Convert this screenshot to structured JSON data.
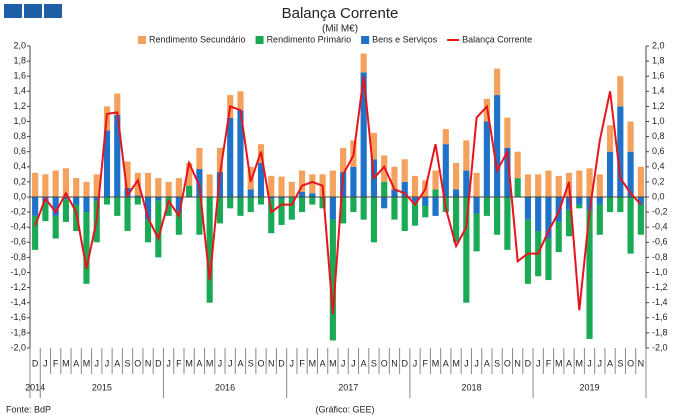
{
  "chart_data": {
    "type": "bar",
    "stacked": true,
    "title": "Balança Corrente",
    "subtitle": "(Mil M€)",
    "source": "Fonte: BdP",
    "credit": "(Gráfico: GEE)",
    "categories": [
      "D",
      "J",
      "F",
      "M",
      "A",
      "M",
      "J",
      "J",
      "A",
      "S",
      "O",
      "N",
      "D",
      "J",
      "F",
      "M",
      "A",
      "M",
      "J",
      "J",
      "A",
      "S",
      "O",
      "N",
      "D",
      "J",
      "F",
      "M",
      "A",
      "M",
      "J",
      "J",
      "A",
      "S",
      "O",
      "N",
      "D",
      "J",
      "F",
      "M",
      "A",
      "M",
      "J",
      "J",
      "A",
      "S",
      "O",
      "N",
      "D",
      "J",
      "F",
      "M",
      "A",
      "M",
      "J",
      "J",
      "A",
      "S",
      "O",
      "N"
    ],
    "years": [
      "2014",
      "2015",
      "2016",
      "2017",
      "2018",
      "2019"
    ],
    "ylim": [
      -2.0,
      2.0
    ],
    "yticks": [
      {
        "value": -2.0,
        "label": "-2,0"
      },
      {
        "value": -1.8,
        "label": "-1,8"
      },
      {
        "value": -1.6,
        "label": "-1,6"
      },
      {
        "value": -1.4,
        "label": "-1,4"
      },
      {
        "value": -1.2,
        "label": "-1,2"
      },
      {
        "value": -1.0,
        "label": "-1,0"
      },
      {
        "value": -0.8,
        "label": "-0,8"
      },
      {
        "value": -0.6,
        "label": "-0,6"
      },
      {
        "value": -0.4,
        "label": "-0,4"
      },
      {
        "value": -0.2,
        "label": "-0,2"
      },
      {
        "value": 0,
        "label": "0,0"
      },
      {
        "value": 0.2,
        "label": "0,2"
      },
      {
        "value": 0.4,
        "label": "0,4"
      },
      {
        "value": 0.6,
        "label": "0,6"
      },
      {
        "value": 0.8,
        "label": "0,8"
      },
      {
        "value": 1.0,
        "label": "1,0"
      },
      {
        "value": 1.2,
        "label": "1,2"
      },
      {
        "value": 1.4,
        "label": "1,4"
      },
      {
        "value": 1.6,
        "label": "1,6"
      },
      {
        "value": 1.8,
        "label": "1,8"
      },
      {
        "value": 2.0,
        "label": "2,0"
      }
    ],
    "grid": false,
    "series": [
      {
        "name": "Rendimento Secundário",
        "color": "#f4a15d",
        "kind": "bar",
        "values": [
          0.32,
          0.3,
          0.35,
          0.38,
          0.25,
          0.2,
          0.3,
          0.32,
          0.28,
          0.35,
          0.3,
          0.32,
          0.25,
          0.2,
          0.25,
          0.3,
          0.28,
          0.3,
          0.32,
          0.3,
          0.25,
          0.3,
          0.25,
          0.28,
          0.27,
          0.2,
          0.28,
          0.25,
          0.3,
          0.35,
          0.32,
          0.35,
          0.25,
          0.35,
          0.35,
          0.3,
          0.3,
          0.28,
          0.22,
          0.25,
          0.2,
          0.35,
          0.4,
          0.32,
          0.3,
          0.35,
          0.4,
          0.35,
          0.3,
          0.3,
          0.35,
          0.28,
          0.32,
          0.35,
          0.38,
          0.3,
          0.35,
          0.4,
          0.4,
          0.4
        ]
      },
      {
        "name": "Rendimento Primário",
        "color": "#1aaa55",
        "kind": "bar",
        "values": [
          -0.45,
          -0.25,
          -0.3,
          -0.3,
          -0.35,
          -0.95,
          -0.55,
          -0.1,
          -0.25,
          -0.45,
          -0.1,
          -0.3,
          -0.75,
          -0.25,
          -0.3,
          0.15,
          -0.5,
          -1.4,
          -0.35,
          -0.15,
          -0.25,
          -0.2,
          -0.1,
          -0.45,
          -0.35,
          -0.3,
          -0.2,
          -0.1,
          -0.15,
          -1.6,
          -0.35,
          -0.2,
          -0.3,
          -0.6,
          0.2,
          -0.3,
          -0.45,
          -0.3,
          -0.15,
          0.1,
          -0.2,
          -0.6,
          -1.4,
          -0.5,
          -0.25,
          -0.5,
          -0.7,
          0.25,
          -0.85,
          -0.6,
          -0.55,
          -0.4,
          -0.35,
          -0.05,
          -1.7,
          -0.4,
          -0.2,
          -0.2,
          -0.75,
          -0.4
        ]
      },
      {
        "name": "Bens e Serviços",
        "color": "#1e73c8",
        "kind": "bar",
        "values": [
          -0.25,
          -0.07,
          -0.25,
          -0.03,
          -0.1,
          -0.2,
          -0.05,
          0.88,
          1.09,
          0.12,
          0.02,
          -0.3,
          -0.05,
          0.0,
          -0.2,
          0.0,
          0.37,
          0.0,
          0.33,
          1.05,
          1.15,
          0.1,
          0.45,
          -0.03,
          -0.02,
          0.0,
          0.07,
          0.05,
          0.0,
          -0.3,
          0.33,
          0.4,
          1.65,
          0.5,
          -0.15,
          0.1,
          0.2,
          -0.08,
          -0.12,
          -0.25,
          0.7,
          0.1,
          0.35,
          -0.22,
          1.0,
          1.35,
          0.65,
          0.0,
          -0.3,
          -0.45,
          -0.55,
          -0.33,
          -0.17,
          -0.1,
          -0.18,
          -0.1,
          0.6,
          1.2,
          0.6,
          -0.1
        ]
      },
      {
        "name": "Balança Corrente",
        "color": "#e8141c",
        "kind": "line",
        "values": [
          -0.38,
          -0.02,
          -0.2,
          0.05,
          -0.2,
          -0.95,
          -0.3,
          1.1,
          1.12,
          0.02,
          0.22,
          -0.28,
          -0.55,
          -0.05,
          -0.25,
          0.45,
          0.15,
          -1.1,
          0.3,
          1.2,
          1.15,
          0.2,
          0.6,
          -0.2,
          -0.1,
          -0.1,
          0.15,
          0.2,
          0.15,
          -1.55,
          0.3,
          0.55,
          1.6,
          0.25,
          0.4,
          0.1,
          0.05,
          -0.1,
          0.1,
          0.7,
          -0.15,
          -0.65,
          -0.4,
          1.05,
          1.2,
          0.35,
          0.6,
          -0.85,
          -0.75,
          -0.75,
          -0.45,
          -0.2,
          0.2,
          -1.5,
          -0.2,
          0.75,
          1.4,
          0.25,
          0.05,
          -0.1
        ]
      }
    ]
  }
}
